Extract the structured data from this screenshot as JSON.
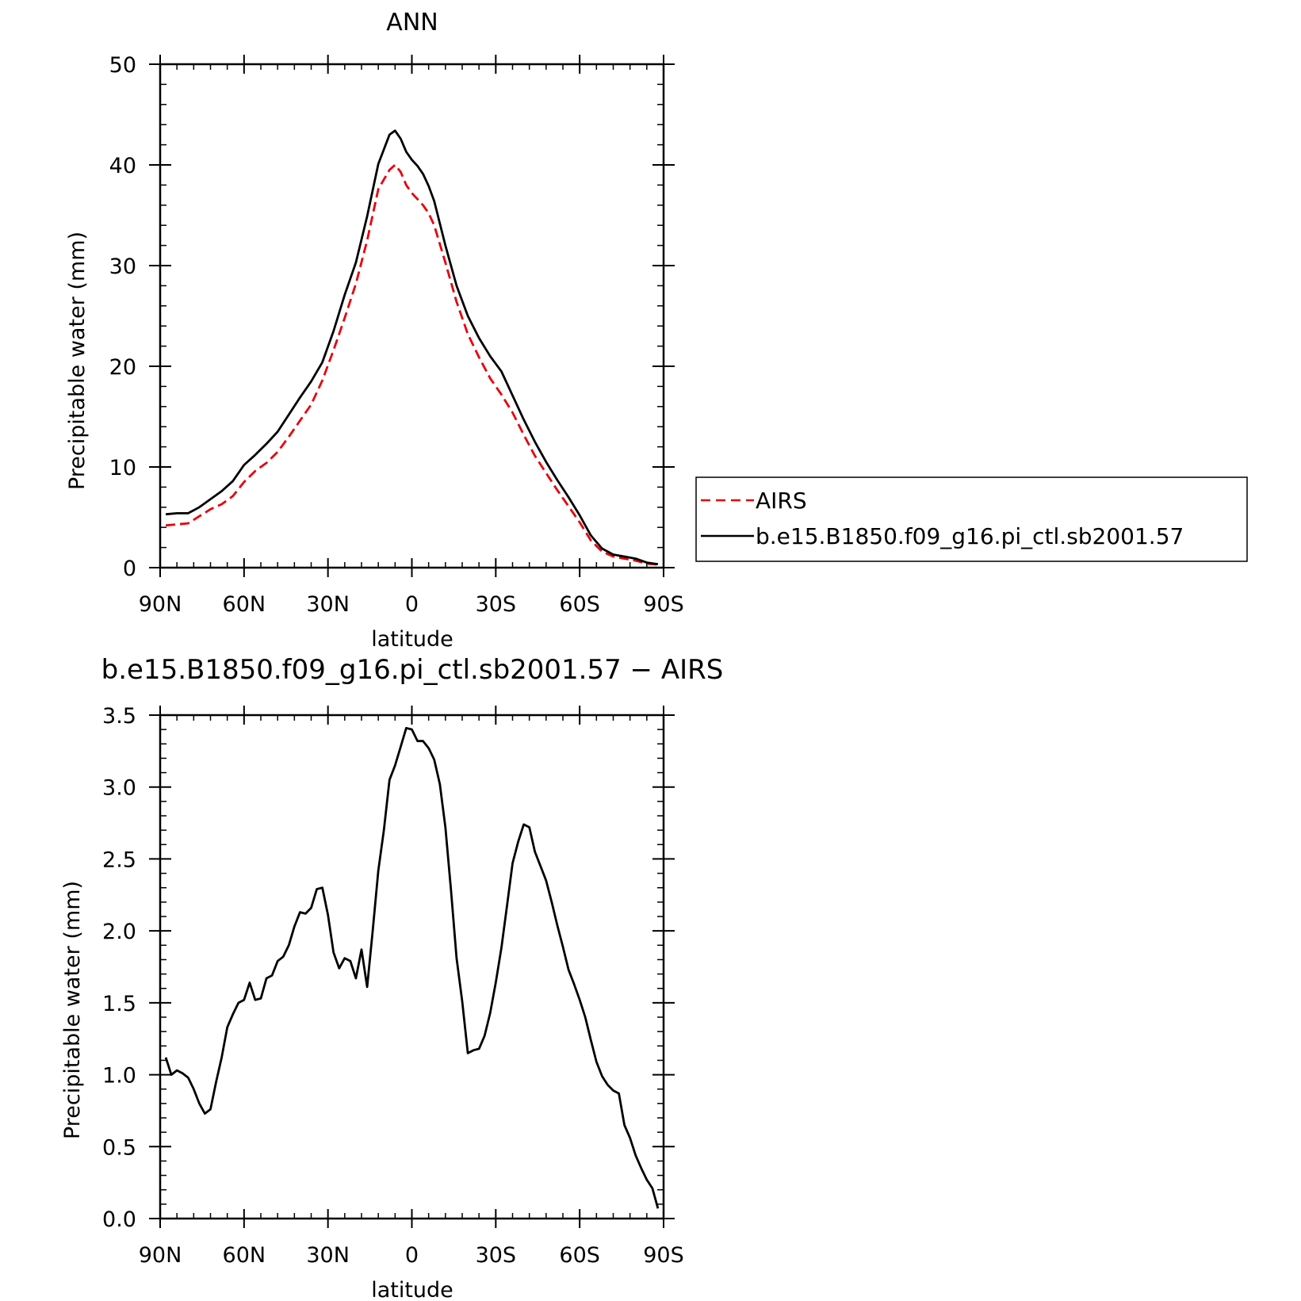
{
  "chart_data": [
    {
      "type": "line",
      "title": "ANN",
      "xlabel": "latitude",
      "ylabel": "Precipitable water (mm)",
      "xlim": [
        90,
        -90
      ],
      "ylim": [
        0,
        50
      ],
      "x_tick_values": [
        90,
        60,
        30,
        0,
        -30,
        -60,
        -90
      ],
      "x_tick_labels": [
        "90N",
        "60N",
        "30N",
        "0",
        "30S",
        "60S",
        "90S"
      ],
      "y_tick_values": [
        0,
        10,
        20,
        30,
        40,
        50
      ],
      "y_tick_labels": [
        "0",
        "10",
        "20",
        "30",
        "40",
        "50"
      ],
      "grid": false,
      "legend_position": "right",
      "x": [
        88,
        84,
        80,
        76,
        72,
        68,
        64,
        60,
        56,
        52,
        48,
        44,
        40,
        36,
        32,
        28,
        24,
        20,
        16,
        12,
        8,
        6,
        4,
        2,
        0,
        -2,
        -4,
        -6,
        -8,
        -12,
        -16,
        -20,
        -24,
        -28,
        -32,
        -36,
        -40,
        -44,
        -48,
        -52,
        -56,
        -60,
        -64,
        -68,
        -72,
        -76,
        -80,
        -84,
        -88
      ],
      "series": [
        {
          "name": "AIRS",
          "color": "#e8000b",
          "dash": "dashed",
          "values": [
            4.2,
            4.3,
            4.4,
            5.1,
            5.8,
            6.3,
            7.1,
            8.5,
            9.6,
            10.4,
            11.5,
            13.0,
            14.6,
            16.2,
            18.6,
            21.6,
            24.8,
            28.2,
            32.5,
            37.6,
            39.5,
            40.0,
            39.3,
            38.0,
            37.2,
            36.6,
            36.0,
            35.2,
            34.0,
            30.3,
            26.4,
            23.2,
            20.9,
            18.8,
            17.2,
            15.4,
            13.2,
            11.1,
            9.4,
            7.7,
            6.1,
            4.5,
            2.7,
            1.6,
            1.1,
            0.9,
            0.7,
            0.4,
            0.3
          ]
        },
        {
          "name": "b.e15.B1850.f09_g16.pi_ctl.sb2001.57",
          "color": "#000000",
          "dash": "solid",
          "values": [
            5.3,
            5.4,
            5.4,
            6.0,
            6.8,
            7.6,
            8.6,
            10.2,
            11.2,
            12.3,
            13.5,
            15.2,
            16.9,
            18.5,
            20.4,
            23.5,
            27.1,
            30.3,
            34.9,
            40.1,
            43.0,
            43.4,
            42.6,
            41.3,
            40.5,
            39.9,
            39.1,
            37.9,
            36.4,
            32.0,
            28.0,
            25.0,
            22.8,
            21.0,
            19.5,
            17.1,
            14.7,
            12.5,
            10.5,
            8.7,
            7.0,
            5.2,
            3.2,
            1.9,
            1.3,
            1.1,
            0.9,
            0.5,
            0.35
          ]
        }
      ]
    },
    {
      "type": "line",
      "title": "b.e15.B1850.f09_g16.pi_ctl.sb2001.57 − AIRS",
      "xlabel": "latitude",
      "ylabel": "Precipitable water (mm)",
      "xlim": [
        90,
        -90
      ],
      "ylim": [
        0,
        3.5
      ],
      "x_tick_values": [
        90,
        60,
        30,
        0,
        -30,
        -60,
        -90
      ],
      "x_tick_labels": [
        "90N",
        "60N",
        "30N",
        "0",
        "30S",
        "60S",
        "90S"
      ],
      "y_tick_values": [
        0,
        0.5,
        1.0,
        1.5,
        2.0,
        2.5,
        3.0,
        3.5
      ],
      "y_tick_labels": [
        "0.0",
        "0.5",
        "1.0",
        "1.5",
        "2.0",
        "2.5",
        "3.0",
        "3.5"
      ],
      "grid": false,
      "series": [
        {
          "color": "#000000",
          "dash": "solid",
          "x": [
            88,
            86,
            84,
            82,
            80,
            78,
            76,
            74,
            72,
            70,
            68,
            66,
            64,
            62,
            60,
            58,
            56,
            54,
            52,
            50,
            48,
            46,
            44,
            42,
            40,
            38,
            36,
            34,
            32,
            30,
            28,
            26,
            24,
            22,
            20,
            18,
            16,
            14,
            12,
            10,
            8,
            6,
            4,
            2,
            0,
            -2,
            -4,
            -6,
            -8,
            -10,
            -12,
            -14,
            -16,
            -18,
            -20,
            -22,
            -24,
            -26,
            -28,
            -30,
            -32,
            -34,
            -36,
            -38,
            -40,
            -42,
            -44,
            -46,
            -48,
            -50,
            -52,
            -54,
            -56,
            -58,
            -60,
            -62,
            -64,
            -66,
            -68,
            -70,
            -72,
            -74,
            -76,
            -78,
            -80,
            -82,
            -84,
            -86,
            -88
          ],
          "values": [
            1.12,
            1.0,
            1.03,
            1.01,
            0.98,
            0.9,
            0.8,
            0.73,
            0.76,
            0.95,
            1.12,
            1.33,
            1.42,
            1.5,
            1.52,
            1.64,
            1.52,
            1.53,
            1.67,
            1.69,
            1.79,
            1.82,
            1.9,
            2.03,
            2.13,
            2.12,
            2.16,
            2.29,
            2.3,
            2.11,
            1.85,
            1.74,
            1.81,
            1.79,
            1.67,
            1.87,
            1.61,
            2.0,
            2.42,
            2.7,
            3.05,
            3.15,
            3.28,
            3.41,
            3.4,
            3.32,
            3.32,
            3.27,
            3.19,
            3.02,
            2.72,
            2.28,
            1.81,
            1.51,
            1.15,
            1.17,
            1.18,
            1.27,
            1.43,
            1.64,
            1.88,
            2.17,
            2.47,
            2.62,
            2.74,
            2.72,
            2.55,
            2.45,
            2.35,
            2.2,
            2.04,
            1.89,
            1.73,
            1.63,
            1.52,
            1.4,
            1.24,
            1.09,
            0.99,
            0.93,
            0.89,
            0.87,
            0.65,
            0.56,
            0.44,
            0.35,
            0.27,
            0.21,
            0.07
          ]
        }
      ]
    }
  ],
  "legend": {
    "entries": [
      {
        "label": "AIRS",
        "color": "#e8000b",
        "dash": "dashed"
      },
      {
        "label": "b.e15.B1850.f09_g16.pi_ctl.sb2001.57",
        "color": "#000000",
        "dash": "solid"
      }
    ]
  }
}
